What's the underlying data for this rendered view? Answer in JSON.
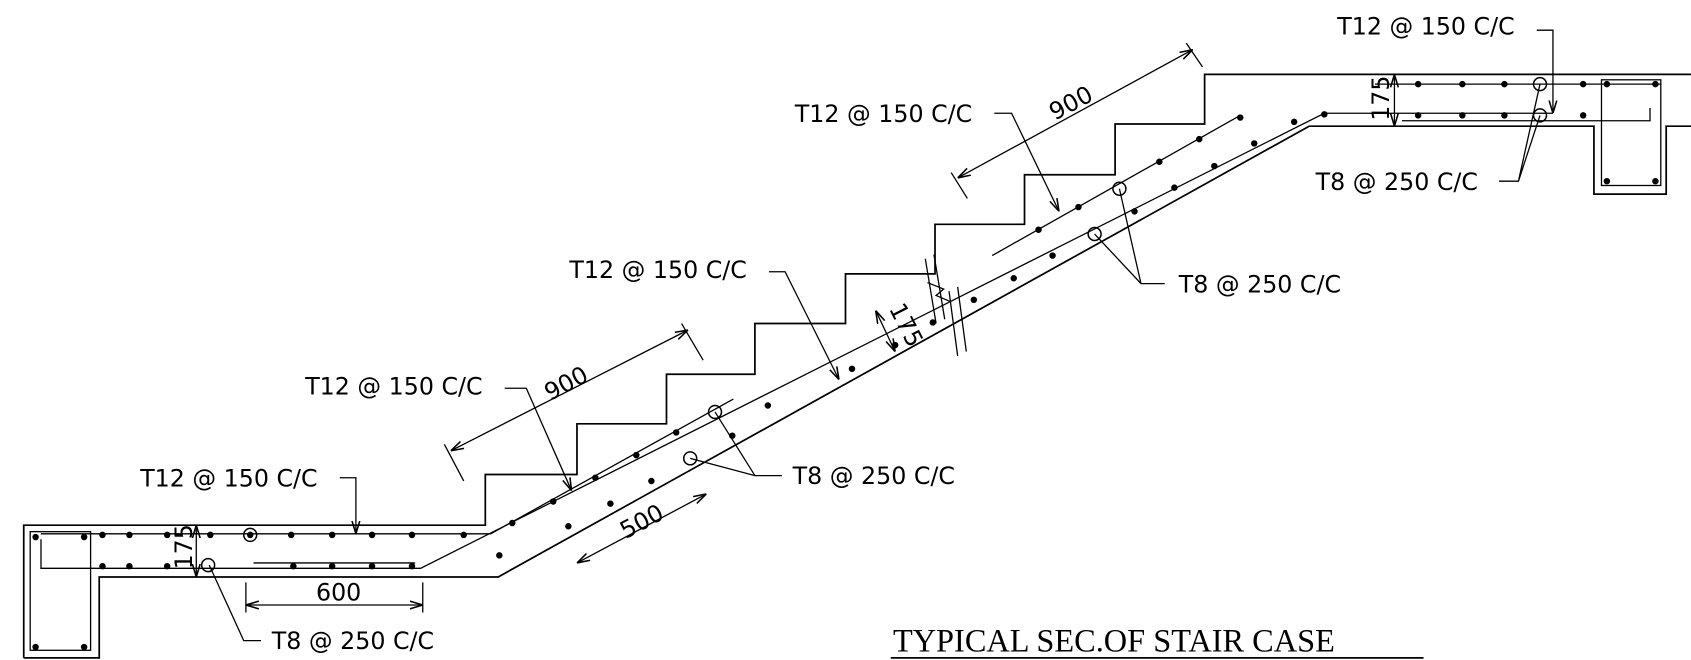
{
  "rebar_labels": [
    "T12 @ 150 C/C",
    "T12 @ 150 C/C",
    "T12 @ 150 C/C",
    "T12 @ 150 C/C",
    "T12 @ 150 C/C",
    "T8 @ 250 C/C",
    "T8 @ 250 C/C",
    "T8 @ 250 C/C",
    "T8 @ 250 C/C"
  ],
  "dimensions": [
    "900",
    "900",
    "175",
    "175",
    "175",
    "500",
    "600"
  ],
  "title": "TYPICAL SEC.OF STAIR CASE"
}
